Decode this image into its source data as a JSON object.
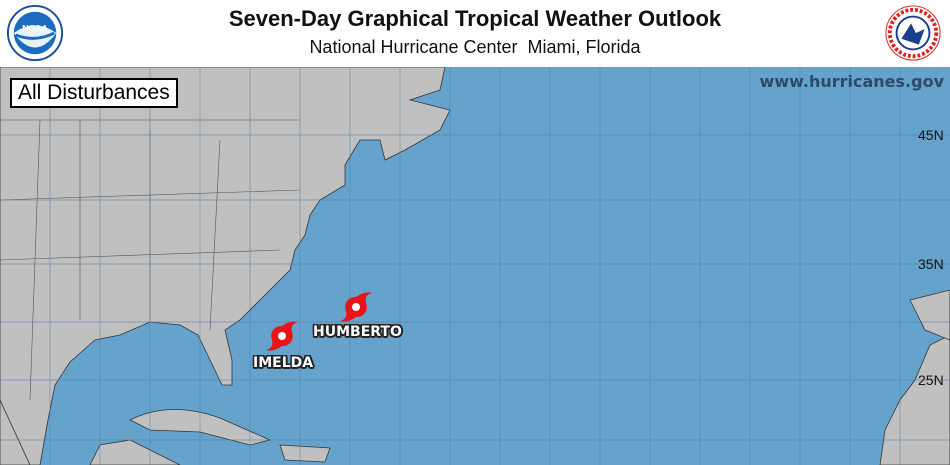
{
  "header": {
    "title": "Seven-Day Graphical Tropical Weather Outlook",
    "subtitle": "National Hurricane Center  Miami, Florida",
    "left_logo": "NOAA",
    "right_logo": "NATIONAL WEATHER SERVICE"
  },
  "map": {
    "panel_label": "All Disturbances",
    "website": "www.hurricanes.gov",
    "latitude_labels": [
      "45N",
      "35N",
      "25N"
    ],
    "colors": {
      "ocean": "#66a3cc",
      "land": "#c0c0c0",
      "storm": "#e8141a"
    },
    "storms": [
      {
        "name": "HUMBERTO",
        "icon": "hurricane-icon"
      },
      {
        "name": "IMELDA",
        "icon": "hurricane-icon"
      }
    ]
  }
}
